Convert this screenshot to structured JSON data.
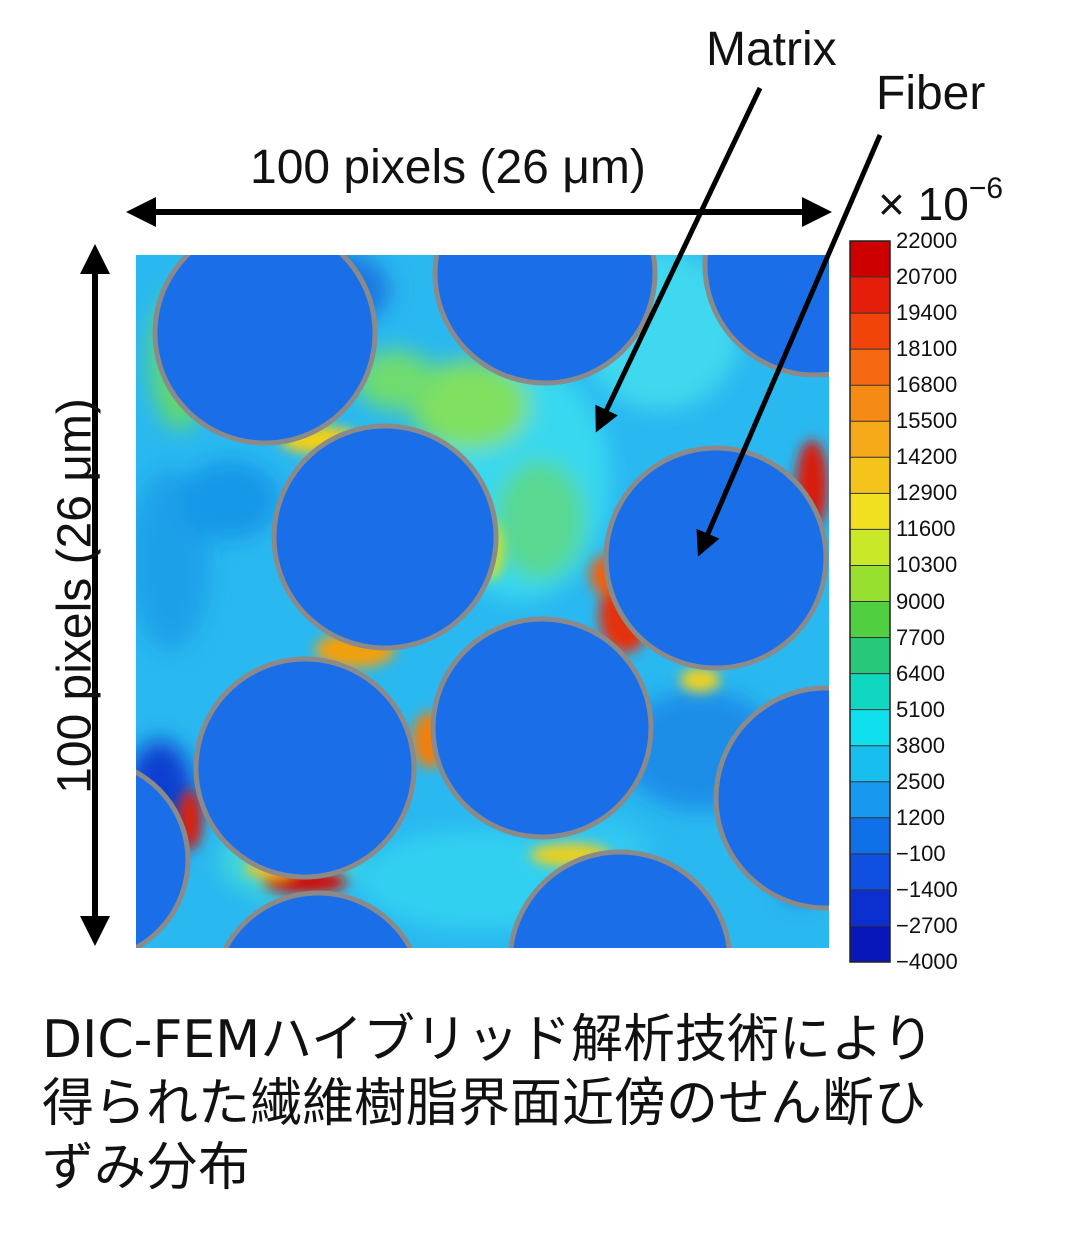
{
  "labels": {
    "matrix": "Matrix",
    "fiber": "Fiber",
    "horizontal_dimension": "100 pixels (26 μm)",
    "vertical_dimension": "100 pixels (26 μm)"
  },
  "colorbar": {
    "multiplier_base": "× 10",
    "multiplier_exponent": "−6",
    "ticks": [
      "22000",
      "20700",
      "19400",
      "18100",
      "16800",
      "15500",
      "14200",
      "12900",
      "11600",
      "10300",
      "9000",
      "7700",
      "6400",
      "5100",
      "3800",
      "2500",
      "1200",
      "−100",
      "−1400",
      "−2700",
      "−4000"
    ],
    "colors": [
      "#cc0000",
      "#e51e0a",
      "#f0440a",
      "#f56a10",
      "#f58a14",
      "#f5a818",
      "#f5c41c",
      "#f0e020",
      "#c8e828",
      "#98e030",
      "#50d040",
      "#28c878",
      "#10d8c0",
      "#10e0ee",
      "#18bfee",
      "#1898ee",
      "#1070e8",
      "#1050e0",
      "#0c30d0",
      "#0818b8"
    ]
  },
  "caption": {
    "line1": "DIC-FEMハイブリッド解析技術により",
    "line2": "得られた繊維樹脂界面近傍のせん断ひ",
    "line3": "ずみ分布"
  },
  "palette": {
    "fiber_fill": "#1a6fe8",
    "fiber_outline": "#8a8a8a",
    "matrix_base": "#28b8f0"
  }
}
